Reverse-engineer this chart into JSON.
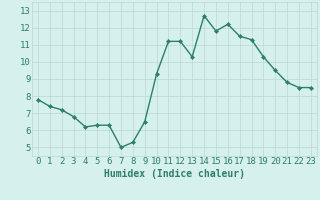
{
  "x": [
    0,
    1,
    2,
    3,
    4,
    5,
    6,
    7,
    8,
    9,
    10,
    11,
    12,
    13,
    14,
    15,
    16,
    17,
    18,
    19,
    20,
    21,
    22,
    23
  ],
  "y": [
    7.8,
    7.4,
    7.2,
    6.8,
    6.2,
    6.3,
    6.3,
    5.0,
    5.3,
    6.5,
    9.3,
    11.2,
    11.2,
    10.3,
    12.7,
    11.8,
    12.2,
    11.5,
    11.3,
    10.3,
    9.5,
    8.8,
    8.5,
    8.5
  ],
  "line_color": "#2e7d6e",
  "marker_color": "#2e7d6e",
  "bg_color": "#d6f0ee",
  "grid_color": "#b8d8d4",
  "xlabel": "Humidex (Indice chaleur)",
  "xlabel_color": "#2e7d6e",
  "tick_color": "#2e7d6e",
  "ylim": [
    4.5,
    13.5
  ],
  "xlim": [
    -0.5,
    23.5
  ],
  "yticks": [
    5,
    6,
    7,
    8,
    9,
    10,
    11,
    12,
    13
  ],
  "xticks": [
    0,
    1,
    2,
    3,
    4,
    5,
    6,
    7,
    8,
    9,
    10,
    11,
    12,
    13,
    14,
    15,
    16,
    17,
    18,
    19,
    20,
    21,
    22,
    23
  ],
  "font_size_label": 7,
  "font_size_tick": 6.5,
  "line_width": 1.0,
  "marker_size": 2.2
}
